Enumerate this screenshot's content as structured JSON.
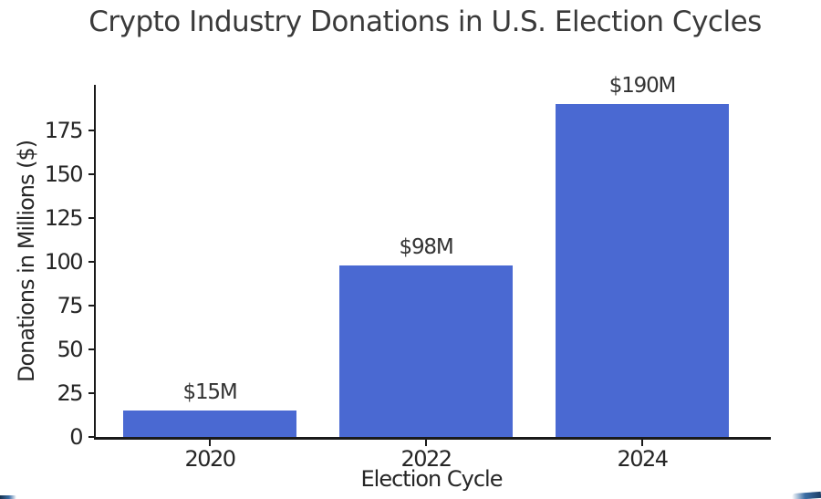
{
  "title": "Crypto Industry Donations in U.S. Election Cycles",
  "colors": {
    "bar": "#4a69d2",
    "axis": "#1a1a1a",
    "title_text": "#3a3a3a",
    "tick_text": "#262626",
    "corner_accent": "#1d3f66"
  },
  "chart_data": {
    "type": "bar",
    "title": "Crypto Industry Donations in U.S. Election Cycles",
    "categories": [
      "2020",
      "2022",
      "2024"
    ],
    "values": [
      15,
      98,
      190
    ],
    "bar_labels": [
      "$15M",
      "$98M",
      "$190M"
    ],
    "xlabel": "Election Cycle",
    "ylabel": "Donations in Millions ($)",
    "ylim": [
      0,
      201
    ],
    "yticks": [
      0,
      25,
      50,
      75,
      100,
      125,
      150,
      175
    ],
    "grid": false,
    "legend_position": "none",
    "bar_color": "#4a69d2"
  }
}
